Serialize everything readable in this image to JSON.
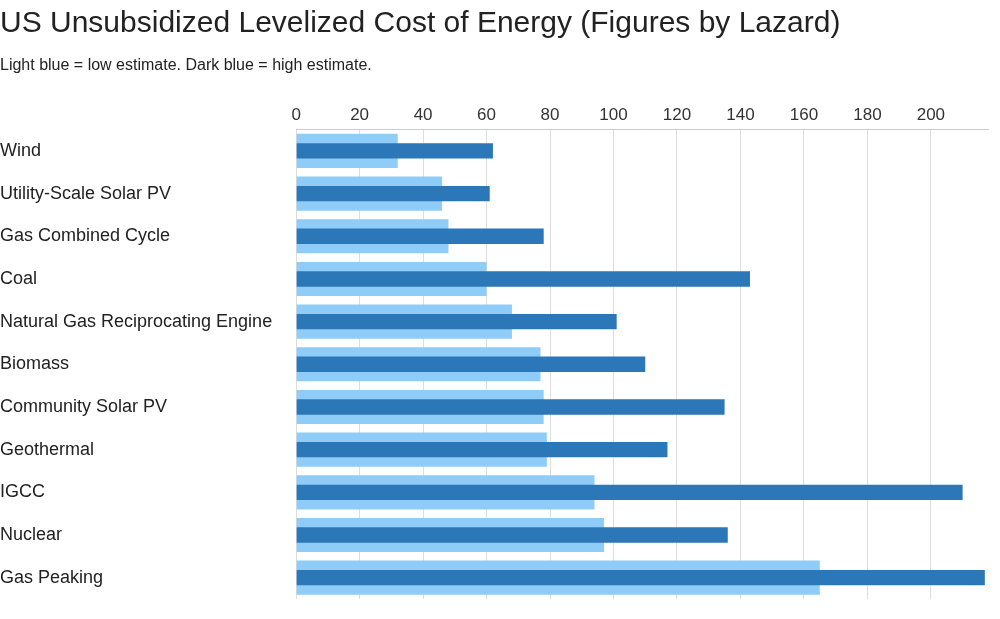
{
  "chart_data": {
    "type": "bar",
    "orientation": "horizontal",
    "title": "US Unsubsidized Levelized Cost of Energy (Figures by Lazard)",
    "subtitle": "Light blue = low estimate. Dark blue = high estimate.",
    "categories": [
      "Wind",
      "Utility-Scale Solar PV",
      "Gas Combined Cycle",
      "Coal",
      "Natural Gas Reciprocating Engine",
      "Biomass",
      "Community Solar PV",
      "Geothermal",
      "IGCC",
      "Nuclear",
      "Gas Peaking"
    ],
    "series": [
      {
        "name": "low estimate",
        "color": "#90ccf8",
        "values": [
          32,
          46,
          48,
          60,
          68,
          77,
          78,
          79,
          94,
          97,
          165
        ]
      },
      {
        "name": "high estimate",
        "color": "#2b77b7",
        "values": [
          62,
          61,
          78,
          143,
          101,
          110,
          135,
          117,
          210,
          136,
          217
        ]
      }
    ],
    "xlim": [
      0,
      218
    ],
    "xticks": [
      0,
      20,
      40,
      60,
      80,
      100,
      120,
      140,
      160,
      180,
      200
    ],
    "grid": true
  }
}
